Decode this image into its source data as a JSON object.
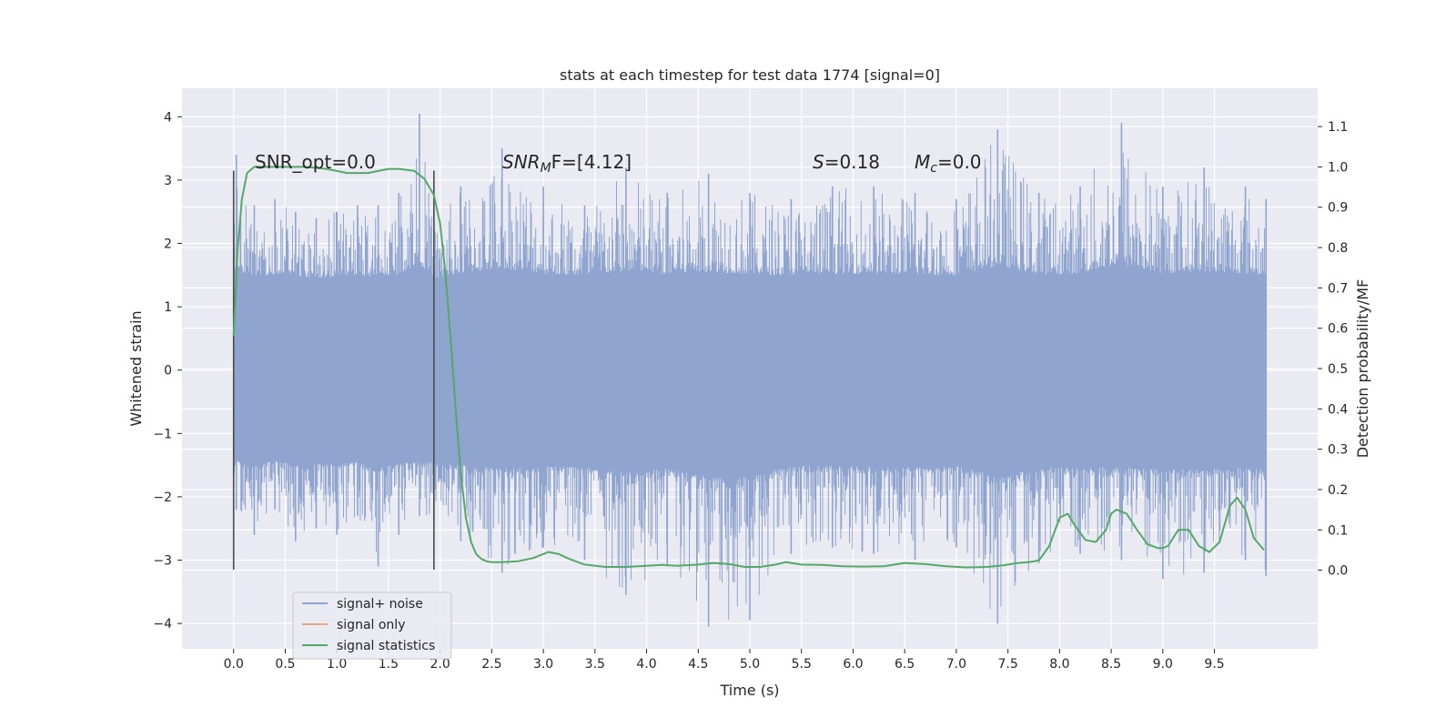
{
  "chart_data": {
    "type": "line",
    "title": "stats at each timestep for test data 1774 [signal=0]",
    "xlabel": "Time (s)",
    "ylabel": "Whitened strain",
    "y2label": "Detection probability/MF",
    "xlim": [
      -0.5,
      10.5
    ],
    "ylim": [
      -4.4,
      4.45
    ],
    "y2lim": [
      -0.195,
      1.195
    ],
    "x_ticks": [
      "0.0",
      "0.5",
      "1.0",
      "1.5",
      "2.0",
      "2.5",
      "3.0",
      "3.5",
      "4.0",
      "4.5",
      "5.0",
      "5.5",
      "6.0",
      "6.5",
      "7.0",
      "7.5",
      "8.0",
      "8.5",
      "9.0",
      "9.5"
    ],
    "x_tick_values": [
      0,
      0.5,
      1,
      1.5,
      2,
      2.5,
      3,
      3.5,
      4,
      4.5,
      5,
      5.5,
      6,
      6.5,
      7,
      7.5,
      8,
      8.5,
      9,
      9.5
    ],
    "y_ticks": [
      "4",
      "3",
      "2",
      "1",
      "0",
      "−1",
      "−2",
      "−3",
      "−4"
    ],
    "y_tick_values": [
      4,
      3,
      2,
      1,
      0,
      -1,
      -2,
      -3,
      -4
    ],
    "y2_ticks": [
      "1.1",
      "1.0",
      "0.9",
      "0.8",
      "0.7",
      "0.6",
      "0.5",
      "0.4",
      "0.3",
      "0.2",
      "0.1",
      "0.0"
    ],
    "y2_tick_values": [
      1.1,
      1.0,
      0.9,
      0.8,
      0.7,
      0.6,
      0.5,
      0.4,
      0.3,
      0.2,
      0.1,
      0.0
    ],
    "grid": true,
    "legend_position": "lower-left",
    "annotations": {
      "snr_opt": "SNR_opt=0.0",
      "snr_mf_main": "SNR",
      "snr_mf_sub": "M",
      "snr_mf_rest": "F=[4.12]",
      "s_main": "S",
      "s_rest": "=0.18",
      "mc_main": "M",
      "mc_sub": "c",
      "mc_rest": "=0.0"
    },
    "segment_markers": [
      0.0,
      1.94
    ],
    "segment_marker_range": [
      -3.15,
      3.15
    ],
    "noise_envelope": {
      "t": [
        0.0,
        0.2,
        0.4,
        0.6,
        0.8,
        1.0,
        1.2,
        1.4,
        1.6,
        1.8,
        1.94,
        2.2,
        2.6,
        3.0,
        3.4,
        3.8,
        4.2,
        4.6,
        5.0,
        5.4,
        5.8,
        6.2,
        6.6,
        7.0,
        7.4,
        7.8,
        8.2,
        8.6,
        9.0,
        9.4,
        9.8,
        10.0
      ],
      "upper": [
        3.4,
        2.6,
        2.7,
        2.5,
        2.4,
        2.5,
        2.6,
        2.6,
        2.8,
        4.05,
        2.3,
        2.9,
        3.5,
        2.9,
        2.6,
        3.2,
        2.8,
        3.1,
        2.8,
        2.7,
        2.9,
        2.9,
        2.8,
        2.7,
        3.8,
        2.8,
        2.9,
        3.9,
        2.9,
        3.2,
        2.9,
        2.7
      ],
      "lower": [
        -2.2,
        -2.6,
        -2.2,
        -2.7,
        -2.5,
        -2.6,
        -2.3,
        -3.1,
        -2.6,
        -2.3,
        -2.4,
        -2.7,
        -3.2,
        -2.8,
        -3.0,
        -3.55,
        -3.1,
        -4.05,
        -3.95,
        -2.9,
        -2.8,
        -2.9,
        -3.0,
        -2.8,
        -4.0,
        -3.05,
        -2.9,
        -3.0,
        -3.3,
        -3.2,
        -3.0,
        -3.25
      ]
    },
    "series": [
      {
        "name": "signal+ noise",
        "color": "#8fa5cf",
        "values": []
      },
      {
        "name": "signal only",
        "color": "#e6a584",
        "values": []
      },
      {
        "name": "signal statistics",
        "color": "#55a868",
        "axis": "y2",
        "x": [
          0.0,
          0.04,
          0.08,
          0.13,
          0.2,
          0.3,
          0.5,
          0.7,
          0.9,
          1.1,
          1.3,
          1.5,
          1.6,
          1.75,
          1.85,
          1.94,
          2.0,
          2.05,
          2.1,
          2.15,
          2.2,
          2.25,
          2.3,
          2.35,
          2.4,
          2.45,
          2.5,
          2.6,
          2.75,
          2.9,
          3.05,
          3.15,
          3.25,
          3.4,
          3.6,
          3.8,
          4.0,
          4.15,
          4.3,
          4.5,
          4.65,
          4.8,
          4.95,
          5.1,
          5.25,
          5.35,
          5.5,
          5.7,
          5.9,
          6.1,
          6.3,
          6.5,
          6.7,
          6.9,
          7.1,
          7.3,
          7.45,
          7.6,
          7.7,
          7.8,
          7.9,
          8.0,
          8.08,
          8.15,
          8.25,
          8.35,
          8.45,
          8.5,
          8.55,
          8.65,
          8.75,
          8.85,
          8.95,
          9.0,
          9.05,
          9.15,
          9.25,
          9.35,
          9.45,
          9.55,
          9.65,
          9.72,
          9.8,
          9.88,
          9.98
        ],
        "values": [
          0.58,
          0.8,
          0.92,
          0.985,
          1.0,
          1.0,
          1.0,
          1.0,
          0.995,
          0.985,
          0.985,
          0.995,
          0.995,
          0.99,
          0.97,
          0.93,
          0.86,
          0.74,
          0.58,
          0.4,
          0.24,
          0.13,
          0.07,
          0.04,
          0.028,
          0.022,
          0.02,
          0.02,
          0.022,
          0.03,
          0.045,
          0.04,
          0.028,
          0.014,
          0.008,
          0.008,
          0.011,
          0.013,
          0.011,
          0.014,
          0.018,
          0.015,
          0.008,
          0.008,
          0.014,
          0.02,
          0.014,
          0.013,
          0.01,
          0.009,
          0.01,
          0.018,
          0.015,
          0.01,
          0.007,
          0.008,
          0.012,
          0.018,
          0.02,
          0.024,
          0.06,
          0.13,
          0.14,
          0.11,
          0.075,
          0.07,
          0.1,
          0.14,
          0.15,
          0.14,
          0.1,
          0.065,
          0.055,
          0.055,
          0.06,
          0.1,
          0.1,
          0.06,
          0.045,
          0.07,
          0.16,
          0.18,
          0.15,
          0.08,
          0.05
        ]
      }
    ]
  }
}
